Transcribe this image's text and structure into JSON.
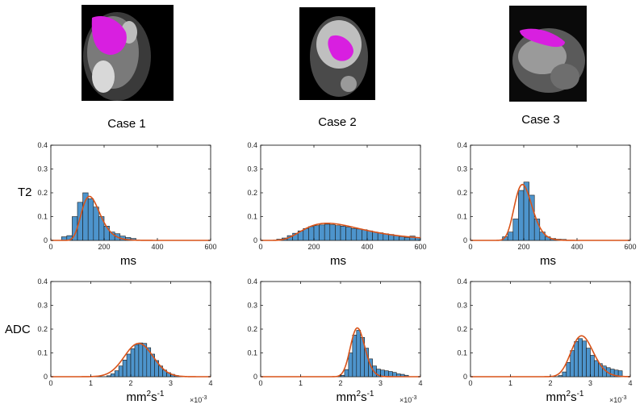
{
  "figure": {
    "case_labels": [
      "Case 1",
      "Case 2",
      "Case 3"
    ],
    "row_labels": [
      "T2",
      "ADC"
    ],
    "colors": {
      "bar_fill": "#4d94cc",
      "bar_edge": "#1a1a1a",
      "fit_line": "#d95319",
      "axis": "#000000"
    }
  },
  "chart_data": [
    {
      "id": "t2-case1",
      "type": "bar",
      "row": "T2",
      "case": "Case 1",
      "xlabel": "ms",
      "xlim": [
        0,
        600
      ],
      "ylim": [
        0,
        0.4
      ],
      "xticks": [
        "0",
        "200",
        "400",
        "600"
      ],
      "yticks": [
        "0",
        "0.1",
        "0.2",
        "0.3",
        "0.4"
      ],
      "bin_start": 40,
      "bin_width": 20,
      "values": [
        0.015,
        0.02,
        0.1,
        0.16,
        0.2,
        0.175,
        0.14,
        0.1,
        0.06,
        0.035,
        0.028,
        0.018,
        0.012,
        0.008
      ],
      "fit": {
        "kind": "lognormal",
        "mode": 145,
        "peak": 0.185,
        "sigma": 0.24
      }
    },
    {
      "id": "t2-case2",
      "type": "bar",
      "row": "T2",
      "case": "Case 2",
      "xlabel": "ms",
      "xlim": [
        0,
        600
      ],
      "ylim": [
        0,
        0.4
      ],
      "xticks": [
        "0",
        "200",
        "400",
        "600"
      ],
      "yticks": [
        "0",
        "0.1",
        "0.2",
        "0.3",
        "0.4"
      ],
      "bin_start": 60,
      "bin_width": 20,
      "values": [
        0.005,
        0.01,
        0.02,
        0.03,
        0.04,
        0.05,
        0.058,
        0.062,
        0.065,
        0.068,
        0.066,
        0.062,
        0.06,
        0.056,
        0.05,
        0.048,
        0.045,
        0.04,
        0.035,
        0.032,
        0.028,
        0.025,
        0.02,
        0.016,
        0.012,
        0.018,
        0.012
      ],
      "fit": {
        "kind": "lognormal",
        "mode": 250,
        "peak": 0.072,
        "sigma": 0.45
      }
    },
    {
      "id": "t2-case3",
      "type": "bar",
      "row": "T2",
      "case": "Case 3",
      "xlabel": "ms",
      "xlim": [
        0,
        600
      ],
      "ylim": [
        0,
        0.4
      ],
      "xticks": [
        "0",
        "200",
        "400",
        "600"
      ],
      "yticks": [
        "0",
        "0.1",
        "0.2",
        "0.3",
        "0.4"
      ],
      "bin_start": 120,
      "bin_width": 20,
      "values": [
        0.015,
        0.035,
        0.09,
        0.21,
        0.245,
        0.19,
        0.09,
        0.035,
        0.015,
        0.008,
        0.005,
        0.004
      ],
      "fit": {
        "kind": "lognormal",
        "mode": 195,
        "peak": 0.235,
        "sigma": 0.17
      }
    },
    {
      "id": "adc-case1",
      "type": "bar",
      "row": "ADC",
      "case": "Case 1",
      "xlabel": "mm²s⁻¹",
      "xlabel_base": "mm",
      "xlabel_sup1": "2",
      "xlabel_mid": "s",
      "xlabel_sup2": "-1",
      "x_multiplier": "×10",
      "x_multiplier_exp": "-3",
      "xlim": [
        0,
        4
      ],
      "ylim": [
        0,
        0.4
      ],
      "xticks": [
        "0",
        "1",
        "2",
        "3",
        "4"
      ],
      "yticks": [
        "0",
        "0.1",
        "0.2",
        "0.3",
        "0.4"
      ],
      "bin_start": 1.4,
      "bin_width": 0.1,
      "values": [
        0.004,
        0.012,
        0.025,
        0.045,
        0.07,
        0.095,
        0.118,
        0.135,
        0.142,
        0.14,
        0.122,
        0.095,
        0.068,
        0.045,
        0.028,
        0.017,
        0.01,
        0.005
      ],
      "fit": {
        "kind": "gaussian",
        "mean": 2.2,
        "peak": 0.14,
        "sigma": 0.36
      }
    },
    {
      "id": "adc-case2",
      "type": "bar",
      "row": "ADC",
      "case": "Case 2",
      "xlabel": "mm²s⁻¹",
      "xlabel_base": "mm",
      "xlabel_sup1": "2",
      "xlabel_mid": "s",
      "xlabel_sup2": "-1",
      "x_multiplier": "×10",
      "x_multiplier_exp": "-3",
      "xlim": [
        0,
        4
      ],
      "ylim": [
        0,
        0.4
      ],
      "xticks": [
        "0",
        "1",
        "2",
        "3",
        "4"
      ],
      "yticks": [
        "0",
        "0.1",
        "0.2",
        "0.3",
        "0.4"
      ],
      "bin_start": 2.0,
      "bin_width": 0.1,
      "values": [
        0.006,
        0.03,
        0.1,
        0.175,
        0.195,
        0.165,
        0.12,
        0.075,
        0.045,
        0.032,
        0.028,
        0.025,
        0.022,
        0.018,
        0.012,
        0.01,
        0.006
      ],
      "fit": {
        "kind": "lognormal",
        "mode": 2.42,
        "peak": 0.205,
        "sigma": 0.075
      }
    },
    {
      "id": "adc-case3",
      "type": "bar",
      "row": "ADC",
      "case": "Case 3",
      "xlabel": "mm²s⁻¹",
      "xlabel_base": "mm",
      "xlabel_sup1": "2",
      "xlabel_mid": "s",
      "xlabel_sup2": "-1",
      "x_multiplier": "×10",
      "x_multiplier_exp": "-3",
      "xlim": [
        0,
        4
      ],
      "ylim": [
        0,
        0.4
      ],
      "xticks": [
        "0",
        "1",
        "2",
        "3",
        "4"
      ],
      "yticks": [
        "0",
        "0.1",
        "0.2",
        "0.3",
        "0.4"
      ],
      "bin_start": 2.2,
      "bin_width": 0.1,
      "values": [
        0.005,
        0.02,
        0.06,
        0.11,
        0.148,
        0.16,
        0.15,
        0.12,
        0.09,
        0.068,
        0.055,
        0.045,
        0.038,
        0.032,
        0.028,
        0.025
      ],
      "fit": {
        "kind": "lognormal",
        "mode": 2.78,
        "peak": 0.172,
        "sigma": 0.1
      }
    }
  ]
}
